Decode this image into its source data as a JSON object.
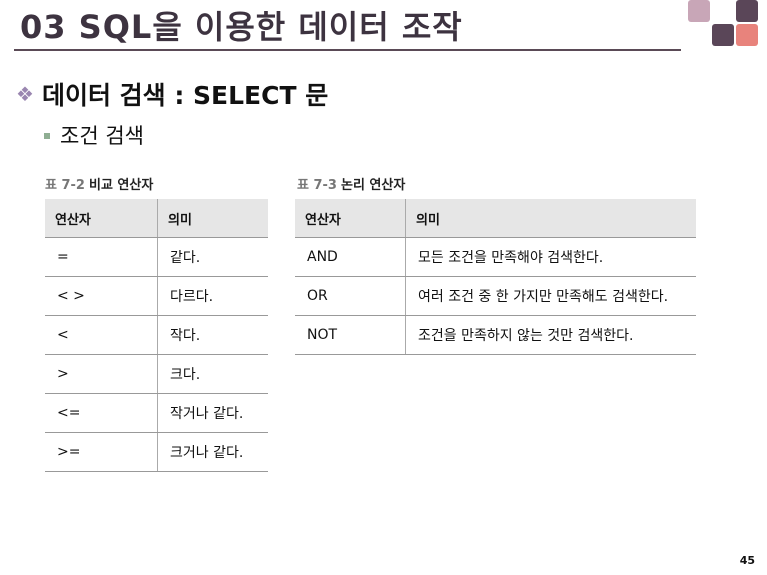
{
  "header": {
    "title": "03 SQL을 이용한 데이터 조작"
  },
  "section": {
    "heading": "데이터 검색 : SELECT 문",
    "subheading": "조건 검색"
  },
  "table1": {
    "caption_num": "표 7-2",
    "caption_text": "비교 연산자",
    "col1": "연산자",
    "col2": "의미",
    "rows": [
      {
        "op": "=",
        "meaning": "같다."
      },
      {
        "op": "< >",
        "meaning": "다르다."
      },
      {
        "op": "<",
        "meaning": "작다."
      },
      {
        "op": ">",
        "meaning": "크다."
      },
      {
        "op": "<=",
        "meaning": "작거나 같다."
      },
      {
        "op": ">=",
        "meaning": "크거나 같다."
      }
    ]
  },
  "table2": {
    "caption_num": "표 7-3",
    "caption_text": "논리 연산자",
    "col1": "연산자",
    "col2": "의미",
    "rows": [
      {
        "op": "AND",
        "meaning": "모든 조건을 만족해야 검색한다."
      },
      {
        "op": "OR",
        "meaning": "여러 조건 중 한 가지만 만족해도 검색한다."
      },
      {
        "op": "NOT",
        "meaning": "조건을 만족하지 않는 것만 검색한다."
      }
    ]
  },
  "footer": {
    "page": "45"
  }
}
